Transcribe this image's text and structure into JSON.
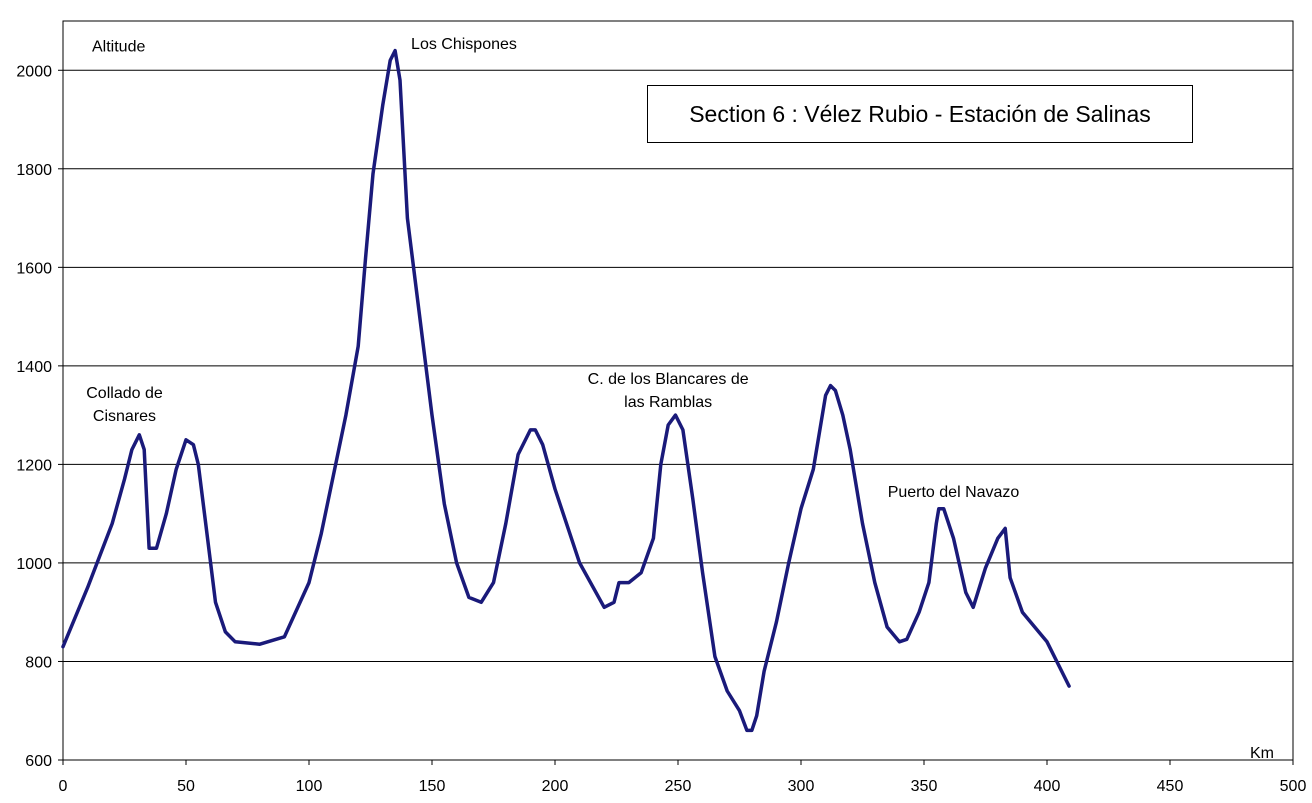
{
  "chart_data": {
    "type": "line",
    "title": "Section 6 : Vélez Rubio - Estación de Salinas",
    "xlabel": "Km",
    "ylabel": "Altitude",
    "xlim": [
      0,
      500
    ],
    "ylim": [
      600,
      2100
    ],
    "xticks": [
      0,
      50,
      100,
      150,
      200,
      250,
      300,
      350,
      400,
      450,
      500
    ],
    "yticks": [
      600,
      800,
      1000,
      1200,
      1400,
      1600,
      1800,
      2000
    ],
    "grid": "horizontal",
    "line_color": "#1a1a7a",
    "series": [
      {
        "x": [
          0,
          10,
          20,
          25,
          28,
          31,
          33,
          35,
          38,
          42,
          46,
          50,
          53,
          55,
          58,
          62,
          66,
          70,
          80,
          90,
          100,
          105,
          110,
          115,
          120,
          123,
          126,
          130,
          133,
          135,
          137,
          140,
          145,
          150,
          155,
          160,
          165,
          170,
          175,
          180,
          185,
          190,
          192,
          195,
          200,
          210,
          220,
          224,
          226,
          230,
          235,
          240,
          243,
          246,
          249,
          252,
          256,
          260,
          265,
          270,
          275,
          278,
          280,
          282,
          285,
          290,
          295,
          300,
          305,
          310,
          312,
          314,
          317,
          320,
          325,
          330,
          335,
          340,
          343,
          348,
          352,
          355,
          356,
          358,
          362,
          367,
          370,
          375,
          380,
          383,
          385,
          390,
          400,
          409
        ],
        "y": [
          830,
          950,
          1080,
          1170,
          1230,
          1260,
          1230,
          1030,
          1030,
          1100,
          1190,
          1250,
          1240,
          1200,
          1080,
          920,
          860,
          840,
          835,
          850,
          960,
          1060,
          1180,
          1300,
          1440,
          1620,
          1790,
          1930,
          2020,
          2040,
          1980,
          1700,
          1500,
          1300,
          1120,
          1000,
          930,
          920,
          960,
          1080,
          1220,
          1270,
          1270,
          1240,
          1150,
          1000,
          910,
          920,
          960,
          960,
          980,
          1050,
          1200,
          1280,
          1300,
          1270,
          1130,
          980,
          810,
          740,
          700,
          660,
          660,
          690,
          780,
          880,
          1000,
          1110,
          1190,
          1340,
          1360,
          1350,
          1300,
          1230,
          1080,
          960,
          870,
          840,
          845,
          900,
          960,
          1080,
          1110,
          1110,
          1050,
          940,
          910,
          990,
          1050,
          1070,
          970,
          900,
          840,
          750
        ]
      }
    ],
    "annotations": [
      {
        "lines": [
          "Altitude"
        ],
        "x": 24,
        "y": 2050
      },
      {
        "lines": [
          "Los Chispones"
        ],
        "x": 163,
        "y": 2055
      },
      {
        "lines": [
          "Collado de",
          "Cisnares"
        ],
        "x": 25,
        "y": 1347
      },
      {
        "lines": [
          "C. de los Blancares de",
          "las Ramblas"
        ],
        "x": 246,
        "y": 1375
      },
      {
        "lines": [
          "Puerto del Navazo"
        ],
        "x": 362,
        "y": 1146
      }
    ]
  }
}
